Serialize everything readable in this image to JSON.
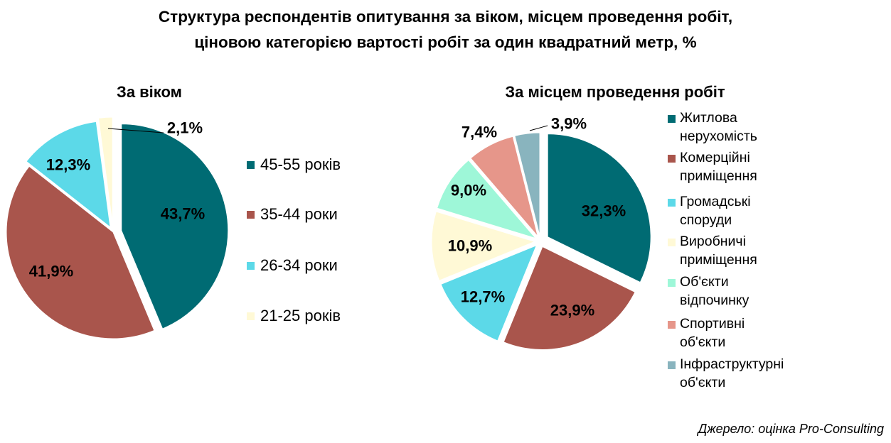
{
  "title": "Структура респондентів опитування за віком, місцем проведення робіт, ціновою категорією вартості робіт за один квадратний метр, %",
  "source": "Джерело: оцінка Pro-Consulting",
  "chart_data": [
    {
      "type": "pie",
      "title": "За віком",
      "categories": [
        "45-55 років",
        "35-44 роки",
        "26-34 роки",
        "21-25 років"
      ],
      "values": [
        43.7,
        41.9,
        12.3,
        2.1
      ],
      "value_labels": [
        "43,7%",
        "41,9%",
        "12,3%",
        "2,1%"
      ],
      "colors": [
        "#006b73",
        "#a9554c",
        "#5cd9e8",
        "#fff9d6"
      ],
      "legend_position": "right"
    },
    {
      "type": "pie",
      "title": "За місцем проведення робіт",
      "categories": [
        "Житлова нерухомість",
        "Комерційні приміщення",
        " Громадські споруди",
        "Виробничі приміщення",
        "Об'єкти відпочинку",
        "Спортивні об'єкти",
        "Інфраструктурні об'єкти"
      ],
      "values": [
        32.3,
        23.9,
        12.7,
        10.9,
        9.0,
        7.4,
        3.9
      ],
      "value_labels": [
        "32,3%",
        "23,9%",
        "12,7%",
        "10,9%",
        "9,0%",
        "7,4%",
        "3,9%"
      ],
      "colors": [
        "#006b73",
        "#a9554c",
        "#5cd9e8",
        "#fff9d6",
        "#9ef7d8",
        "#e6968a",
        "#89b4be"
      ],
      "legend_position": "right"
    }
  ]
}
